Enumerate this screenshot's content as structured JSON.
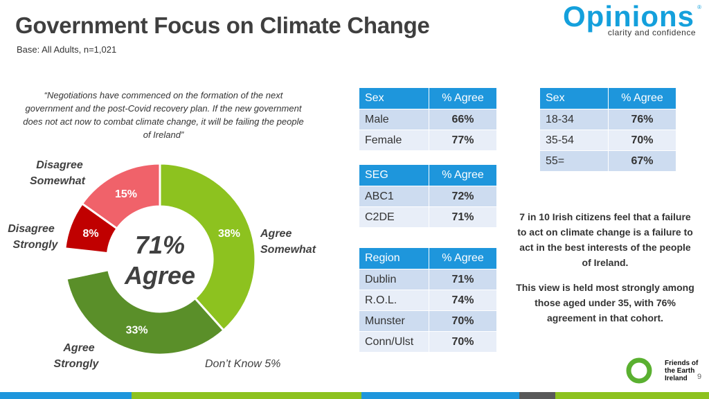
{
  "slide": {
    "title": "Government Focus on Climate Change",
    "base": "Base: All Adults, n=1,021",
    "page_number": "9",
    "quote": "“Negotiations have commenced on the formation of the next government and the post-Covid recovery plan. If the new government does not act now to combat climate change, it will be failing the people of Ireland”",
    "summary_1": "7 in 10 Irish citizens feel that a failure to act on climate change is a failure to act in the best interests of the people of Ireland.",
    "summary_2": "This view is held most strongly among those aged under 35, with 76% agreement in that cohort."
  },
  "logos": {
    "opinions_word": "Opinions",
    "opinions_tagline": "clarity and confidence",
    "opinions_tm": "®",
    "foe_line1": "Friends of",
    "foe_line2": "the Earth",
    "foe_line3": "Ireland"
  },
  "colors": {
    "agree_somewhat": "#8dc21f",
    "agree_strongly": "#5a8f29",
    "dont_know": "#ffffff",
    "disagree_strongly": "#c00000",
    "disagree_somewhat": "#f0626a",
    "table_header": "#1e96dc",
    "bar_blue": "#1e96dc",
    "bar_green": "#8dc21f",
    "bar_grey": "#595959",
    "foe_green": "#5ab030"
  },
  "chart_data": {
    "type": "donut",
    "center_value": "71%",
    "center_label": "Agree",
    "slices": [
      {
        "name": "Agree Somewhat",
        "value": 38,
        "label": "38%",
        "color_key": "agree_somewhat"
      },
      {
        "name": "Agree Strongly",
        "value": 33,
        "label": "33%",
        "color_key": "agree_strongly"
      },
      {
        "name": "Don’t Know 5%",
        "value": 5,
        "label": "",
        "color_key": "dont_know"
      },
      {
        "name": "Disagree Strongly",
        "value": 8,
        "label": "8%",
        "color_key": "disagree_strongly"
      },
      {
        "name": "Disagree Somewhat",
        "value": 15,
        "label": "15%",
        "color_key": "disagree_somewhat"
      }
    ],
    "category_labels": {
      "agree_somewhat": [
        "Agree",
        "Somewhat"
      ],
      "agree_strongly": [
        "Agree",
        "Strongly"
      ],
      "dont_know": "Don’t Know 5%",
      "disagree_strongly": [
        "Disagree",
        "Strongly"
      ],
      "disagree_somewhat": [
        "Disagree",
        "Somewhat"
      ]
    }
  },
  "tables": {
    "sex": {
      "headers": [
        "Sex",
        "% Agree"
      ],
      "rows": [
        [
          "Male",
          "66%"
        ],
        [
          "Female",
          "77%"
        ]
      ]
    },
    "seg": {
      "headers": [
        "SEG",
        "% Agree"
      ],
      "rows": [
        [
          "ABC1",
          "72%"
        ],
        [
          "C2DE",
          "71%"
        ]
      ]
    },
    "region": {
      "headers": [
        "Region",
        "% Agree"
      ],
      "rows": [
        [
          "Dublin",
          "71%"
        ],
        [
          "R.O.L.",
          "74%"
        ],
        [
          "Munster",
          "70%"
        ],
        [
          "Conn/Ulst",
          "70%"
        ]
      ]
    },
    "age": {
      "headers": [
        "Sex",
        "% Agree"
      ],
      "rows": [
        [
          "18-34",
          "76%"
        ],
        [
          "35-54",
          "70%"
        ],
        [
          "55=",
          "67%"
        ]
      ]
    }
  }
}
